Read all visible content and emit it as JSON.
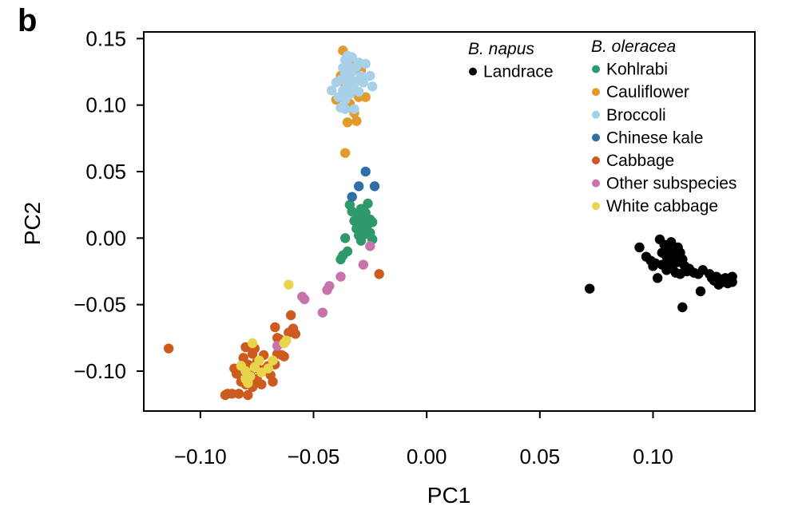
{
  "panel_label": "b",
  "chart_data": {
    "type": "scatter",
    "xlabel": "PC1",
    "ylabel": "PC2",
    "xlim": [
      -0.125,
      0.145
    ],
    "ylim": [
      -0.13,
      0.155
    ],
    "xticks": [
      -0.1,
      -0.05,
      0.0,
      0.05,
      0.1
    ],
    "xtick_labels": [
      "−0.10",
      "−0.05",
      "0.00",
      "0.05",
      "0.10"
    ],
    "yticks": [
      -0.1,
      -0.05,
      0.0,
      0.05,
      0.1,
      0.15
    ],
    "ytick_labels": [
      "−0.10",
      "−0.05",
      "0.00",
      "0.05",
      "0.10",
      "0.15"
    ],
    "grid": false,
    "legend_placement": "top-right",
    "legend_groups": [
      {
        "title": "B. napus",
        "entries": [
          "Landrace"
        ]
      },
      {
        "title": "B. oleracea",
        "entries": [
          "Kohlrabi",
          "Cauliflower",
          "Broccoli",
          "Chinese kale",
          "Cabbage",
          "Other subspecies",
          "White cabbage"
        ]
      }
    ],
    "series": [
      {
        "name": "Landrace",
        "color": "#000000",
        "points": [
          [
            0.072,
            -0.038
          ],
          [
            0.094,
            -0.007
          ],
          [
            0.097,
            -0.014
          ],
          [
            0.099,
            -0.017
          ],
          [
            0.1,
            -0.021
          ],
          [
            0.101,
            -0.019
          ],
          [
            0.102,
            -0.03
          ],
          [
            0.103,
            -0.001
          ],
          [
            0.104,
            -0.011
          ],
          [
            0.104,
            -0.02
          ],
          [
            0.105,
            -0.005
          ],
          [
            0.106,
            -0.014
          ],
          [
            0.106,
            -0.024
          ],
          [
            0.107,
            -0.009
          ],
          [
            0.107,
            -0.018
          ],
          [
            0.108,
            -0.003
          ],
          [
            0.108,
            -0.012
          ],
          [
            0.109,
            -0.02
          ],
          [
            0.11,
            -0.013
          ],
          [
            0.11,
            -0.026
          ],
          [
            0.111,
            -0.007
          ],
          [
            0.111,
            -0.018
          ],
          [
            0.112,
            -0.011
          ],
          [
            0.112,
            -0.027
          ],
          [
            0.113,
            -0.052
          ],
          [
            0.113,
            -0.016
          ],
          [
            0.114,
            -0.021
          ],
          [
            0.115,
            -0.025
          ],
          [
            0.116,
            -0.023
          ],
          [
            0.118,
            -0.026
          ],
          [
            0.12,
            -0.027
          ],
          [
            0.121,
            -0.04
          ],
          [
            0.122,
            -0.024
          ],
          [
            0.125,
            -0.027
          ],
          [
            0.126,
            -0.03
          ],
          [
            0.127,
            -0.032
          ],
          [
            0.128,
            -0.029
          ],
          [
            0.129,
            -0.035
          ],
          [
            0.13,
            -0.031
          ],
          [
            0.131,
            -0.033
          ],
          [
            0.132,
            -0.03
          ],
          [
            0.133,
            -0.034
          ],
          [
            0.134,
            -0.032
          ],
          [
            0.135,
            -0.029
          ],
          [
            0.135,
            -0.033
          ]
        ]
      },
      {
        "name": "Kohlrabi",
        "color": "#2e9a6b",
        "points": [
          [
            -0.038,
            -0.016
          ],
          [
            -0.037,
            -0.013
          ],
          [
            -0.036,
            0.0
          ],
          [
            -0.035,
            -0.01
          ],
          [
            -0.034,
            0.025
          ],
          [
            -0.033,
            0.02
          ],
          [
            -0.032,
            0.013
          ],
          [
            -0.031,
            0.007
          ],
          [
            -0.031,
            0.018
          ],
          [
            -0.03,
            0.002
          ],
          [
            -0.03,
            0.012
          ],
          [
            -0.029,
            -0.002
          ],
          [
            -0.029,
            0.022
          ],
          [
            -0.028,
            0.008
          ],
          [
            -0.028,
            0.015
          ],
          [
            -0.027,
            0.003
          ],
          [
            -0.027,
            0.019
          ],
          [
            -0.026,
            0.01
          ],
          [
            -0.026,
            0.026
          ],
          [
            -0.025,
            0.014
          ],
          [
            -0.025,
            0.004
          ],
          [
            -0.024,
            -0.001
          ],
          [
            -0.024,
            0.012
          ]
        ]
      },
      {
        "name": "Cauliflower",
        "color": "#e29a2c",
        "points": [
          [
            -0.04,
            0.104
          ],
          [
            -0.038,
            0.122
          ],
          [
            -0.037,
            0.141
          ],
          [
            -0.036,
            0.116
          ],
          [
            -0.036,
            0.064
          ],
          [
            -0.035,
            0.133
          ],
          [
            -0.035,
            0.087
          ],
          [
            -0.034,
            0.101
          ],
          [
            -0.033,
            0.127
          ],
          [
            -0.033,
            0.113
          ],
          [
            -0.032,
            0.131
          ],
          [
            -0.032,
            0.094
          ],
          [
            -0.031,
            0.118
          ],
          [
            -0.031,
            0.088
          ],
          [
            -0.03,
            0.106
          ],
          [
            -0.029,
            0.126
          ],
          [
            -0.028,
            0.12
          ],
          [
            -0.027,
            0.106
          ]
        ]
      },
      {
        "name": "Broccoli",
        "color": "#a8d0e8",
        "points": [
          [
            -0.042,
            0.111
          ],
          [
            -0.04,
            0.117
          ],
          [
            -0.039,
            0.106
          ],
          [
            -0.038,
            0.098
          ],
          [
            -0.038,
            0.119
          ],
          [
            -0.037,
            0.128
          ],
          [
            -0.037,
            0.111
          ],
          [
            -0.036,
            0.134
          ],
          [
            -0.036,
            0.124
          ],
          [
            -0.036,
            0.104
          ],
          [
            -0.036,
            0.097
          ],
          [
            -0.035,
            0.137
          ],
          [
            -0.035,
            0.13
          ],
          [
            -0.035,
            0.115
          ],
          [
            -0.034,
            0.12
          ],
          [
            -0.034,
            0.108
          ],
          [
            -0.033,
            0.136
          ],
          [
            -0.033,
            0.125
          ],
          [
            -0.032,
            0.112
          ],
          [
            -0.032,
            0.097
          ],
          [
            -0.031,
            0.129
          ],
          [
            -0.031,
            0.118
          ],
          [
            -0.03,
            0.11
          ],
          [
            -0.03,
            0.132
          ],
          [
            -0.029,
            0.122
          ],
          [
            -0.028,
            0.117
          ],
          [
            -0.027,
            0.131
          ],
          [
            -0.025,
            0.122
          ],
          [
            -0.024,
            0.114
          ]
        ]
      },
      {
        "name": "Chinese kale",
        "color": "#2f6ea6",
        "points": [
          [
            -0.033,
            0.031
          ],
          [
            -0.03,
            0.039
          ],
          [
            -0.027,
            0.05
          ],
          [
            -0.023,
            0.039
          ]
        ]
      },
      {
        "name": "Cabbage",
        "color": "#cd5a1e",
        "points": [
          [
            -0.114,
            -0.083
          ],
          [
            -0.089,
            -0.118
          ],
          [
            -0.088,
            -0.117
          ],
          [
            -0.086,
            -0.117
          ],
          [
            -0.085,
            -0.098
          ],
          [
            -0.084,
            -0.102
          ],
          [
            -0.083,
            -0.117
          ],
          [
            -0.082,
            -0.108
          ],
          [
            -0.081,
            -0.1
          ],
          [
            -0.081,
            -0.09
          ],
          [
            -0.08,
            -0.082
          ],
          [
            -0.08,
            -0.11
          ],
          [
            -0.079,
            -0.118
          ],
          [
            -0.079,
            -0.095
          ],
          [
            -0.078,
            -0.103
          ],
          [
            -0.077,
            -0.087
          ],
          [
            -0.077,
            -0.112
          ],
          [
            -0.076,
            -0.083
          ],
          [
            -0.075,
            -0.093
          ],
          [
            -0.075,
            -0.106
          ],
          [
            -0.074,
            -0.099
          ],
          [
            -0.073,
            -0.11
          ],
          [
            -0.072,
            -0.088
          ],
          [
            -0.071,
            -0.098
          ],
          [
            -0.07,
            -0.096
          ],
          [
            -0.069,
            -0.103
          ],
          [
            -0.068,
            -0.108
          ],
          [
            -0.067,
            -0.067
          ],
          [
            -0.067,
            -0.095
          ],
          [
            -0.066,
            -0.087
          ],
          [
            -0.066,
            -0.075
          ],
          [
            -0.065,
            -0.076
          ],
          [
            -0.064,
            -0.088
          ],
          [
            -0.063,
            -0.089
          ],
          [
            -0.061,
            -0.071
          ],
          [
            -0.06,
            -0.058
          ],
          [
            -0.059,
            -0.068
          ],
          [
            -0.058,
            -0.072
          ],
          [
            -0.021,
            -0.027
          ]
        ]
      },
      {
        "name": "Other subspecies",
        "color": "#c873ab",
        "points": [
          [
            -0.066,
            -0.081
          ],
          [
            -0.055,
            -0.044
          ],
          [
            -0.054,
            -0.046
          ],
          [
            -0.046,
            -0.056
          ],
          [
            -0.044,
            -0.039
          ],
          [
            -0.043,
            -0.036
          ],
          [
            -0.038,
            -0.029
          ],
          [
            -0.028,
            -0.02
          ],
          [
            -0.025,
            -0.006
          ]
        ]
      },
      {
        "name": "White cabbage",
        "color": "#e8d54b",
        "points": [
          [
            -0.082,
            -0.096
          ],
          [
            -0.08,
            -0.1
          ],
          [
            -0.08,
            -0.106
          ],
          [
            -0.079,
            -0.109
          ],
          [
            -0.078,
            -0.104
          ],
          [
            -0.077,
            -0.079
          ],
          [
            -0.076,
            -0.097
          ],
          [
            -0.074,
            -0.092
          ],
          [
            -0.073,
            -0.101
          ],
          [
            -0.07,
            -0.098
          ],
          [
            -0.068,
            -0.092
          ],
          [
            -0.063,
            -0.079
          ],
          [
            -0.062,
            -0.077
          ],
          [
            -0.061,
            -0.035
          ]
        ]
      }
    ]
  }
}
